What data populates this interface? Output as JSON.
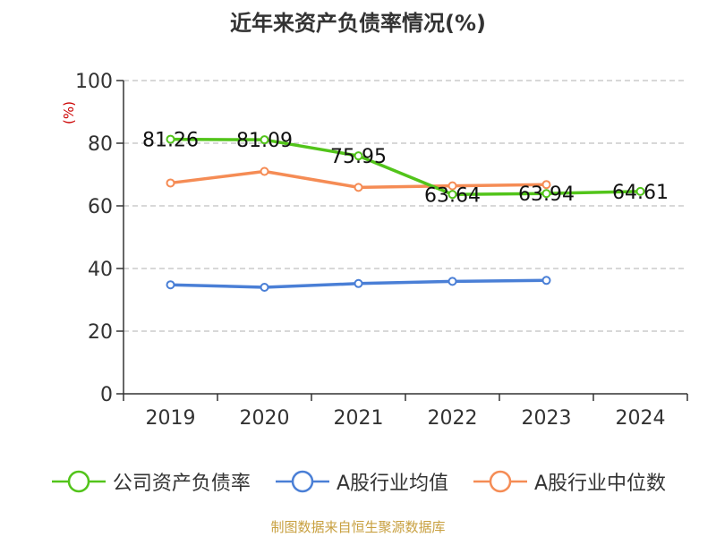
{
  "title": "近年来资产负债率情况(%)",
  "source": "制图数据来自恒生聚源数据库",
  "colors": {
    "axis": "#333333",
    "grid": "#cccccc",
    "unit": "#cc0000"
  },
  "chart_data": {
    "type": "line",
    "title": "近年来资产负债率情况(%)",
    "ylabel": "(%)",
    "ylim": [
      0,
      100
    ],
    "yticks": [
      0,
      20,
      40,
      60,
      80,
      100
    ],
    "categories": [
      "2019",
      "2020",
      "2021",
      "2022",
      "2023",
      "2024"
    ],
    "grid": true,
    "legend_position": "bottom",
    "series": [
      {
        "name": "公司资产负债率",
        "color": "#52c41a",
        "labeled": true,
        "values": [
          81.26,
          81.09,
          75.95,
          63.64,
          63.94,
          64.61
        ]
      },
      {
        "name": "A股行业均值",
        "color": "#4a7fd6",
        "labeled": false,
        "values": [
          34.8,
          34.0,
          35.2,
          35.9,
          36.2,
          null
        ]
      },
      {
        "name": "A股行业中位数",
        "color": "#f58c55",
        "labeled": false,
        "values": [
          67.3,
          71.0,
          65.9,
          66.4,
          66.8,
          null
        ]
      }
    ]
  }
}
